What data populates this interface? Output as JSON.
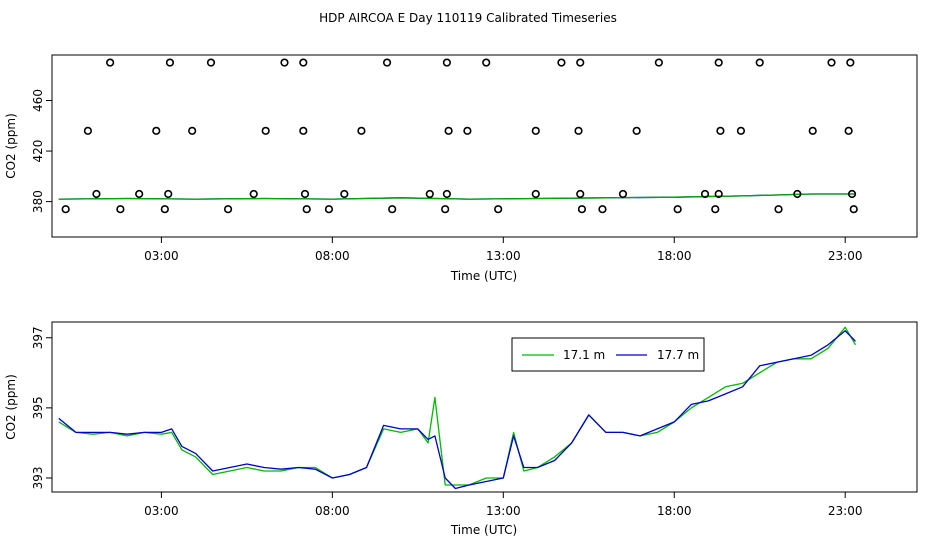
{
  "title": "HDP AIRCOA E  Day 110119  Calibrated Timeseries",
  "chart_data": [
    {
      "type": "scatter",
      "xlabel": "Time (UTC)",
      "ylabel": "CO2 (ppm)",
      "xlim": [
        -0.2,
        25.1
      ],
      "ylim": [
        352,
        496
      ],
      "x_ticks": [
        3,
        8,
        13,
        18,
        23
      ],
      "x_tick_labels": [
        "03:00",
        "08:00",
        "13:00",
        "18:00",
        "23:00"
      ],
      "y_ticks": [
        380,
        420,
        460
      ],
      "y_tick_labels": [
        "380",
        "420",
        "460"
      ],
      "grid": false,
      "scatter_points": [
        [
          1.5,
          490
        ],
        [
          3.25,
          490
        ],
        [
          4.45,
          490
        ],
        [
          6.6,
          490
        ],
        [
          7.15,
          490
        ],
        [
          9.6,
          490
        ],
        [
          11.35,
          490
        ],
        [
          12.5,
          490
        ],
        [
          14.7,
          490
        ],
        [
          15.25,
          490
        ],
        [
          17.55,
          490
        ],
        [
          19.3,
          490
        ],
        [
          20.5,
          490
        ],
        [
          22.6,
          490
        ],
        [
          23.15,
          490
        ],
        [
          0.85,
          436
        ],
        [
          2.85,
          436
        ],
        [
          3.9,
          436
        ],
        [
          6.05,
          436
        ],
        [
          7.15,
          436
        ],
        [
          8.85,
          436
        ],
        [
          11.4,
          436
        ],
        [
          11.95,
          436
        ],
        [
          13.95,
          436
        ],
        [
          15.2,
          436
        ],
        [
          16.9,
          436
        ],
        [
          19.35,
          436
        ],
        [
          19.95,
          436
        ],
        [
          22.05,
          436
        ],
        [
          23.1,
          436
        ],
        [
          0.2,
          374
        ],
        [
          1.1,
          386
        ],
        [
          1.8,
          374
        ],
        [
          2.35,
          386
        ],
        [
          3.1,
          374
        ],
        [
          3.2,
          386
        ],
        [
          4.95,
          374
        ],
        [
          5.7,
          386
        ],
        [
          7.2,
          386
        ],
        [
          7.25,
          374
        ],
        [
          7.9,
          374
        ],
        [
          8.35,
          386
        ],
        [
          9.75,
          374
        ],
        [
          10.85,
          386
        ],
        [
          11.3,
          374
        ],
        [
          11.35,
          386
        ],
        [
          12.85,
          374
        ],
        [
          13.95,
          386
        ],
        [
          15.3,
          374
        ],
        [
          15.25,
          386
        ],
        [
          15.9,
          374
        ],
        [
          16.5,
          386
        ],
        [
          18.1,
          374
        ],
        [
          18.9,
          386
        ],
        [
          19.2,
          374
        ],
        [
          19.3,
          386
        ],
        [
          21.05,
          374
        ],
        [
          21.6,
          386
        ],
        [
          23.2,
          386
        ],
        [
          23.25,
          374
        ]
      ],
      "series": [
        {
          "name": "",
          "color": "#0000cc",
          "x": [
            0,
            2,
            4,
            6,
            8,
            10,
            12,
            14,
            16,
            18,
            20,
            22,
            23.3
          ],
          "y": [
            382,
            382.5,
            382,
            382.5,
            382,
            383,
            382,
            382.5,
            383,
            383.5,
            384.5,
            386,
            386
          ]
        },
        {
          "name": "",
          "color": "#00aa00",
          "x": [
            0,
            2,
            4,
            6,
            8,
            10,
            12,
            14,
            16,
            18,
            20,
            22,
            23.3
          ],
          "y": [
            382,
            382.5,
            382,
            382.5,
            382,
            383,
            382,
            382.5,
            383,
            383.5,
            384.5,
            386,
            386
          ]
        }
      ]
    },
    {
      "type": "line",
      "xlabel": "Time (UTC)",
      "ylabel": "CO2 (ppm)",
      "xlim": [
        -0.2,
        25.1
      ],
      "ylim": [
        392.6,
        397.45
      ],
      "x_ticks": [
        3,
        8,
        13,
        18,
        23
      ],
      "x_tick_labels": [
        "03:00",
        "08:00",
        "13:00",
        "18:00",
        "23:00"
      ],
      "y_ticks": [
        393,
        395,
        397
      ],
      "y_tick_labels": [
        "393",
        "395",
        "397"
      ],
      "grid": false,
      "legend": "top-right",
      "series": [
        {
          "name": "17.1 m",
          "color": "#00bb00",
          "x": [
            0,
            0.5,
            1,
            1.5,
            2,
            2.5,
            3,
            3.3,
            3.6,
            4,
            4.5,
            5,
            5.5,
            6,
            6.5,
            7,
            7.5,
            8,
            8.5,
            9,
            9.5,
            10,
            10.5,
            10.8,
            11,
            11.3,
            11.6,
            12,
            12.5,
            13,
            13.3,
            13.6,
            14,
            14.5,
            15,
            15.5,
            16,
            16.5,
            17,
            17.5,
            18,
            18.5,
            19,
            19.5,
            20,
            20.5,
            21,
            21.5,
            22,
            22.5,
            23,
            23.3
          ],
          "y": [
            394.6,
            394.3,
            394.25,
            394.3,
            394.2,
            394.3,
            394.25,
            394.3,
            393.8,
            393.6,
            393.1,
            393.2,
            393.3,
            393.2,
            393.2,
            393.3,
            393.3,
            393.0,
            393.1,
            393.3,
            394.4,
            394.3,
            394.4,
            394.0,
            395.3,
            392.8,
            392.8,
            392.8,
            393.0,
            393.0,
            394.3,
            393.2,
            393.3,
            393.6,
            394.0,
            394.8,
            394.3,
            394.3,
            394.2,
            394.3,
            394.6,
            395.0,
            395.3,
            395.6,
            395.7,
            396.0,
            396.3,
            396.4,
            396.4,
            396.7,
            397.3,
            396.8
          ]
        },
        {
          "name": "17.7 m",
          "color": "#0000cc",
          "x": [
            0,
            0.5,
            1,
            1.5,
            2,
            2.5,
            3,
            3.3,
            3.6,
            4,
            4.5,
            5,
            5.5,
            6,
            6.5,
            7,
            7.5,
            8,
            8.5,
            9,
            9.5,
            10,
            10.5,
            10.8,
            11,
            11.3,
            11.6,
            12,
            12.5,
            13,
            13.3,
            13.6,
            14,
            14.5,
            15,
            15.5,
            16,
            16.5,
            17,
            17.5,
            18,
            18.5,
            19,
            19.5,
            20,
            20.5,
            21,
            21.5,
            22,
            22.5,
            23,
            23.3
          ],
          "y": [
            394.7,
            394.3,
            394.3,
            394.3,
            394.25,
            394.3,
            394.3,
            394.4,
            393.9,
            393.7,
            393.2,
            393.3,
            393.4,
            393.3,
            393.25,
            393.3,
            393.25,
            393.0,
            393.1,
            393.3,
            394.5,
            394.4,
            394.4,
            394.1,
            394.2,
            393.0,
            392.7,
            392.8,
            392.9,
            393.0,
            394.2,
            393.3,
            393.3,
            393.5,
            394.0,
            394.8,
            394.3,
            394.3,
            394.2,
            394.4,
            394.6,
            395.1,
            395.2,
            395.4,
            395.6,
            396.2,
            396.3,
            396.4,
            396.5,
            396.8,
            397.2,
            396.9
          ]
        }
      ]
    }
  ]
}
